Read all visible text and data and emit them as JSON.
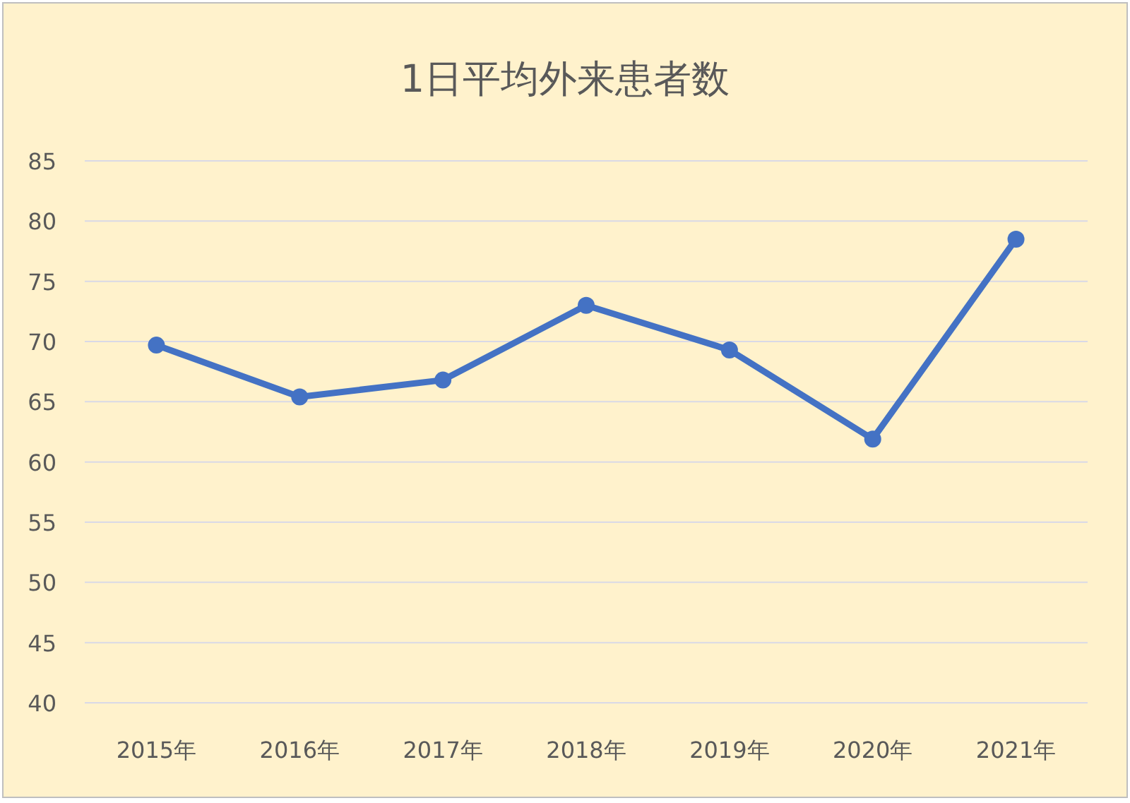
{
  "chart_data": {
    "type": "line",
    "title": "1日平均外来患者数",
    "categories": [
      "2015年",
      "2016年",
      "2017年",
      "2018年",
      "2019年",
      "2020年",
      "2021年"
    ],
    "series": [
      {
        "color": "#4472c4",
        "values": [
          69.7,
          65.4,
          66.8,
          73.0,
          69.3,
          61.9,
          78.5
        ]
      }
    ],
    "ylim": [
      40,
      85
    ],
    "yticks": [
      40,
      45,
      50,
      55,
      60,
      65,
      70,
      75,
      80,
      85
    ],
    "grid": "y",
    "marker": "circle"
  }
}
